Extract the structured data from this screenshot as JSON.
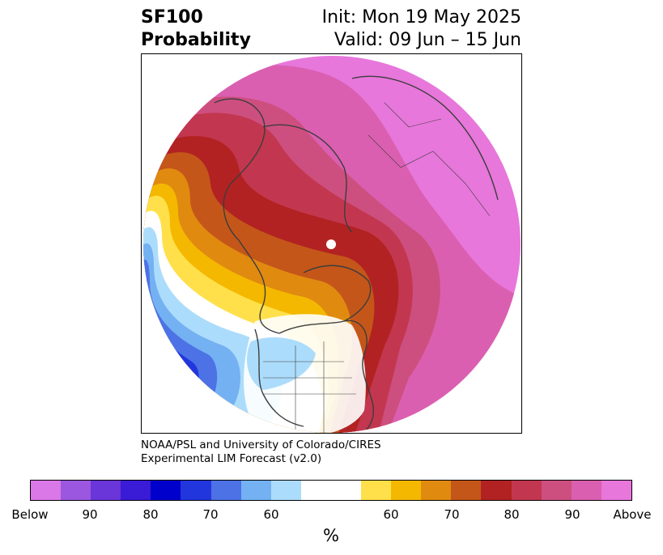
{
  "title": {
    "line1": "SF100",
    "line2": "Probability",
    "init": "Init: Mon 19 May 2025",
    "valid": "Valid: 09 Jun – 15 Jun"
  },
  "credit": {
    "line1": "NOAA/PSL and University of Colorado/CIRES",
    "line2": "Experimental LIM Forecast (v2.0)"
  },
  "colorbar": {
    "segments": [
      {
        "color": "#d978e6"
      },
      {
        "color": "#9b57e0"
      },
      {
        "color": "#6a35d9"
      },
      {
        "color": "#3a1bd6"
      },
      {
        "color": "#0000cc"
      },
      {
        "color": "#2236dd"
      },
      {
        "color": "#4c72e6"
      },
      {
        "color": "#74b1f2"
      },
      {
        "color": "#acdcfb"
      },
      {
        "color": "#ffffff"
      },
      {
        "color": "#ffffff"
      },
      {
        "color": "#ffe04a"
      },
      {
        "color": "#f4b800"
      },
      {
        "color": "#e08a10"
      },
      {
        "color": "#c4561a"
      },
      {
        "color": "#b22222"
      },
      {
        "color": "#c2374f"
      },
      {
        "color": "#cd4f7f"
      },
      {
        "color": "#db5fb0"
      },
      {
        "color": "#e777db"
      }
    ],
    "ticks": {
      "below": "Below",
      "b90": "90",
      "b80": "80",
      "b70": "70",
      "b60": "60",
      "a60": "60",
      "a70": "70",
      "a80": "80",
      "a90": "90",
      "above": "Above"
    },
    "unit": "%"
  }
}
